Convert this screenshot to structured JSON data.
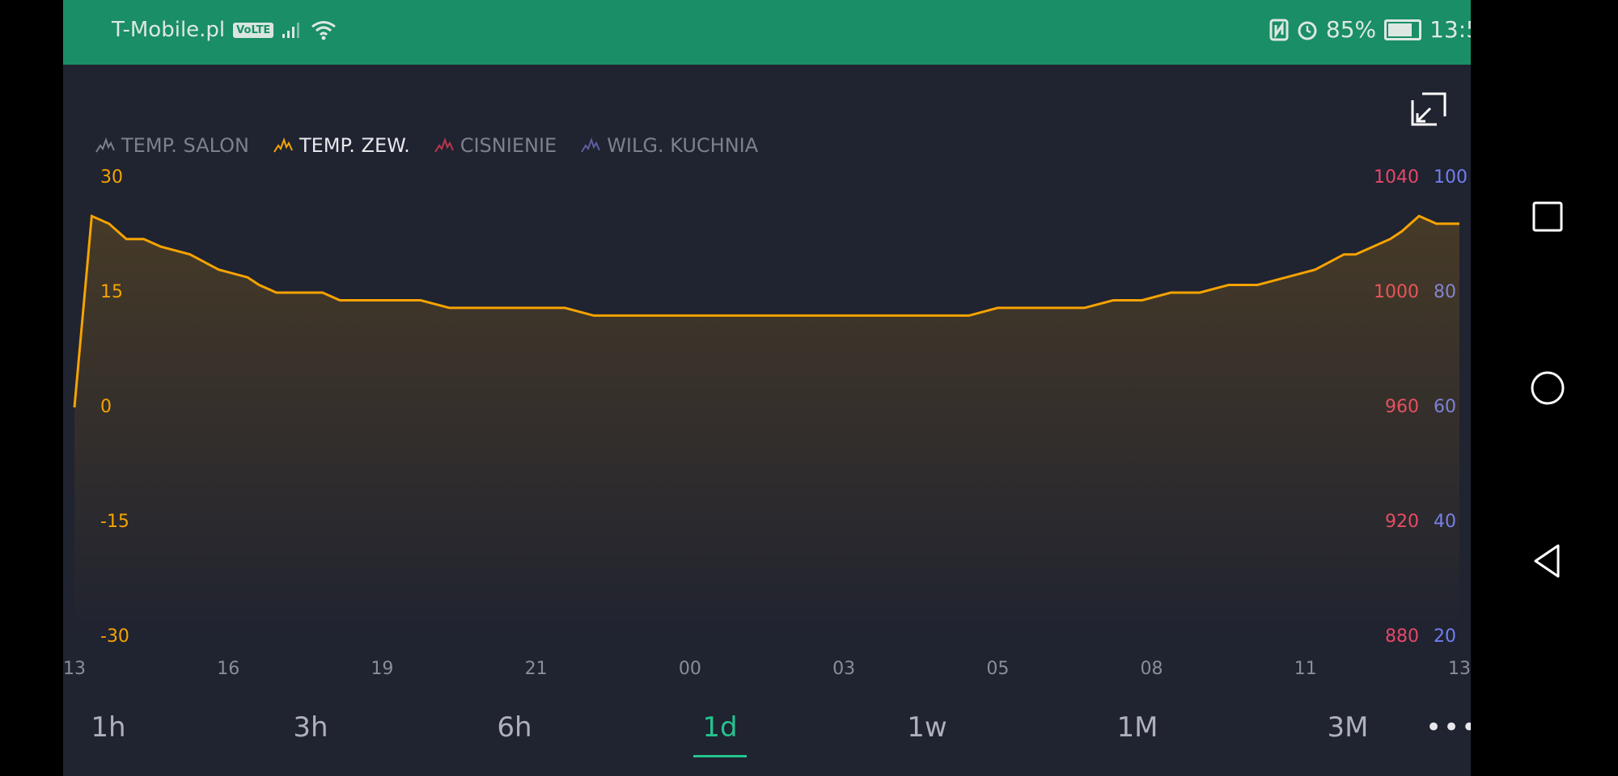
{
  "status_bar": {
    "carrier": "T-Mobile.pl",
    "volte": "VoLTE",
    "battery": "85%",
    "time": "13:5",
    "battery_level": 0.85
  },
  "legend": [
    {
      "name": "TEMP. SALON",
      "color": "#7c818e",
      "active": false
    },
    {
      "name": "TEMP. ZEW.",
      "color": "#f5a300",
      "active": true
    },
    {
      "name": "CISNIENIE",
      "color": "#b8384f",
      "active": false
    },
    {
      "name": "WILG. KUCHNIA",
      "color": "#5a5fa0",
      "active": false
    }
  ],
  "axes": {
    "left": [
      "30",
      "15",
      "0",
      "-15",
      "-30"
    ],
    "middle": [
      "1040",
      "1000",
      "960",
      "920",
      "880"
    ],
    "right": [
      "100",
      "80",
      "60",
      "40",
      "20"
    ]
  },
  "ranges": [
    "1h",
    "3h",
    "6h",
    "1d",
    "1w",
    "1M",
    "3M"
  ],
  "selected_range": "1d",
  "colors": {
    "accent": "#23c48e",
    "series": "#f5a300",
    "background": "#202330",
    "statusbar": "#1a8e66"
  },
  "chart_data": {
    "type": "line",
    "title": "",
    "x_ticks": [
      "13",
      "16",
      "19",
      "21",
      "00",
      "03",
      "05",
      "08",
      "11",
      "13"
    ],
    "ylim": [
      -30,
      30
    ],
    "y2lim": [
      880,
      1040
    ],
    "y3lim": [
      20,
      100
    ],
    "series": [
      {
        "name": "TEMP. ZEW.",
        "x": [
          0.0,
          0.3,
          0.6,
          0.9,
          1.2,
          1.5,
          2.0,
          2.5,
          3.0,
          3.2,
          3.5,
          3.8,
          4.0,
          4.3,
          4.6,
          5.0,
          5.5,
          5.8,
          6.0,
          6.5,
          7.0,
          7.2,
          7.5,
          7.8,
          8.0,
          8.5,
          9.0,
          9.5,
          10.0,
          10.5,
          11.0,
          11.5,
          12.0,
          12.5,
          13.0,
          13.5,
          14.0,
          14.5,
          15.0,
          15.5,
          16.0,
          16.5,
          17.0,
          17.5,
          18.0,
          18.5,
          19.0,
          19.5,
          20.0,
          20.5,
          21.0,
          21.5,
          22.0,
          22.2,
          22.5,
          22.8,
          23.0,
          23.3,
          23.6,
          24.0
        ],
        "y": [
          0,
          25,
          24,
          22,
          22,
          21,
          20,
          18,
          17,
          16,
          15,
          15,
          15,
          15,
          14,
          14,
          14,
          14,
          14,
          13,
          13,
          13,
          13,
          13,
          13,
          13,
          12,
          12,
          12,
          12,
          12,
          12,
          12,
          12,
          12,
          12,
          12,
          12,
          12,
          12,
          13,
          13,
          13,
          13,
          14,
          14,
          15,
          15,
          16,
          16,
          17,
          18,
          20,
          20,
          21,
          22,
          23,
          25,
          24,
          24
        ]
      }
    ]
  }
}
